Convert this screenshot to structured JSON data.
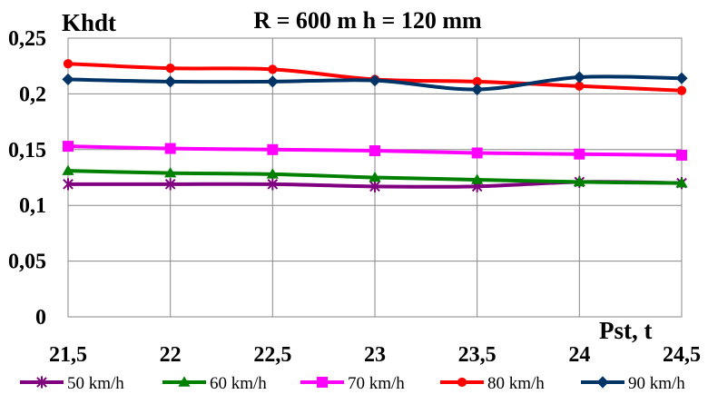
{
  "chart_data": {
    "type": "line",
    "title": "R = 600 m  h = 120 mm",
    "ylabel": "Khdt",
    "xlabel": "Pst, t",
    "x": [
      21.5,
      22,
      22.5,
      23,
      23.5,
      24,
      24.5
    ],
    "x_tick_labels": [
      "21,5",
      "22",
      "22,5",
      "23",
      "23,5",
      "24",
      "24,5"
    ],
    "y_tick_labels": [
      "0",
      "0,05",
      "0,1",
      "0,15",
      "0,2",
      "0,25"
    ],
    "ylim": [
      0,
      0.25
    ],
    "y_ticks": [
      0,
      0.05,
      0.1,
      0.15,
      0.2,
      0.25
    ],
    "grid": true,
    "legend_position": "bottom",
    "series": [
      {
        "name": "50 km/h",
        "color": "#800080",
        "marker": "star",
        "values": [
          0.119,
          0.119,
          0.119,
          0.117,
          0.117,
          0.121,
          0.12
        ]
      },
      {
        "name": "60 km/h",
        "color": "#008000",
        "marker": "triangle",
        "values": [
          0.131,
          0.129,
          0.128,
          0.125,
          0.123,
          0.121,
          0.12
        ]
      },
      {
        "name": "70 km/h",
        "color": "#ff00ff",
        "marker": "square",
        "values": [
          0.153,
          0.151,
          0.15,
          0.149,
          0.147,
          0.146,
          0.145
        ]
      },
      {
        "name": "80 km/h",
        "color": "#ff0000",
        "marker": "circle",
        "values": [
          0.227,
          0.223,
          0.222,
          0.213,
          0.211,
          0.207,
          0.203
        ]
      },
      {
        "name": "90 km/h",
        "color": "#003366",
        "marker": "diamond",
        "values": [
          0.213,
          0.211,
          0.211,
          0.212,
          0.204,
          0.215,
          0.214
        ]
      }
    ]
  }
}
